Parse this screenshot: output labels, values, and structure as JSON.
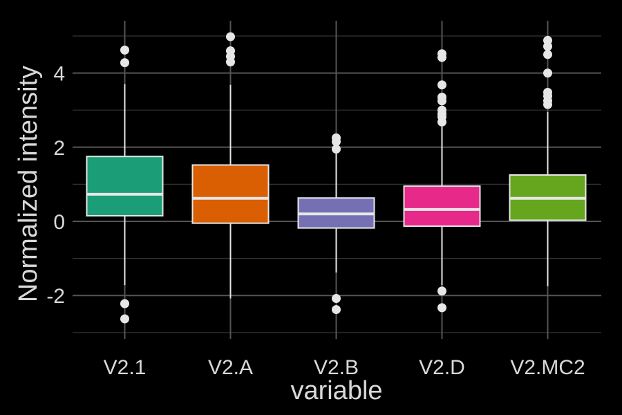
{
  "chart_data": {
    "type": "boxplot",
    "xlabel": "variable",
    "ylabel": "Normalized intensity",
    "ylim": [
      -3.2,
      5.1
    ],
    "yticks": [
      -2,
      0,
      2,
      4
    ],
    "ytick_labels": [
      "-2",
      "0",
      "2",
      "4"
    ],
    "grid": true,
    "background": "#000000",
    "grid_major_color": "#555555",
    "grid_minor_color": "#333333",
    "box_outline_color": "#e6e6e6",
    "categories": [
      "V2.1",
      "V2.A",
      "V2.B",
      "V2.D",
      "V2.MC2"
    ],
    "boxes": [
      {
        "name": "V2.1",
        "color": "#1b9e77",
        "q1": 0.15,
        "median": 0.73,
        "q3": 1.75,
        "whisker_low": -1.72,
        "whisker_high": 3.7,
        "outliers": [
          4.62,
          4.28,
          -2.22,
          -2.63
        ]
      },
      {
        "name": "V2.A",
        "color": "#d95f02",
        "q1": -0.05,
        "median": 0.62,
        "q3": 1.52,
        "whisker_low": -2.08,
        "whisker_high": 3.68,
        "outliers": [
          4.98,
          4.6,
          4.45,
          4.3
        ]
      },
      {
        "name": "V2.B",
        "color": "#7570b3",
        "q1": -0.18,
        "median": 0.2,
        "q3": 0.63,
        "whisker_low": -1.38,
        "whisker_high": 1.85,
        "outliers": [
          2.25,
          2.15,
          1.95,
          -2.08,
          -2.38
        ]
      },
      {
        "name": "V2.D",
        "color": "#e7298a",
        "q1": -0.13,
        "median": 0.32,
        "q3": 0.95,
        "whisker_low": -1.72,
        "whisker_high": 2.55,
        "outliers": [
          4.52,
          4.42,
          3.68,
          3.35,
          3.25,
          3.0,
          2.9,
          2.82,
          2.68,
          -1.88,
          -2.33
        ]
      },
      {
        "name": "V2.MC2",
        "color": "#66a61e",
        "q1": 0.03,
        "median": 0.62,
        "q3": 1.25,
        "whisker_low": -1.75,
        "whisker_high": 2.95,
        "outliers": [
          4.88,
          4.72,
          4.5,
          4.0,
          3.48,
          3.38,
          3.25,
          3.15
        ]
      }
    ]
  }
}
